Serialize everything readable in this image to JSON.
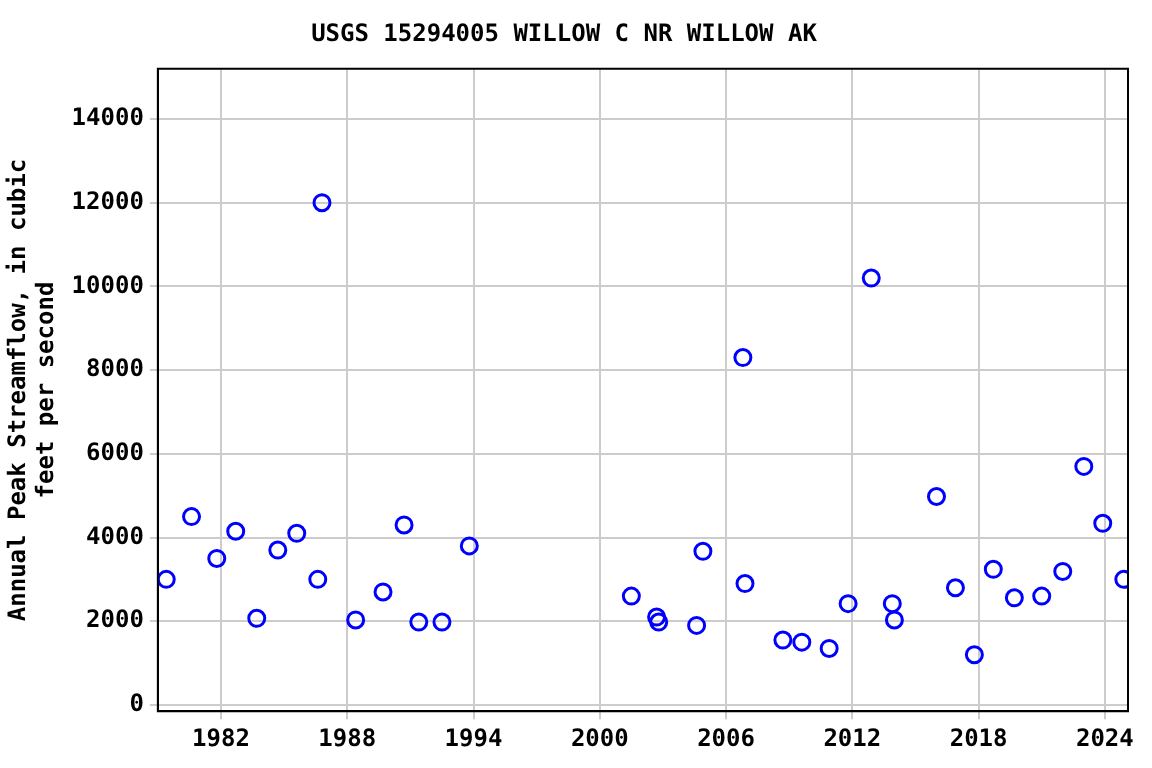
{
  "chart_data": {
    "type": "scatter",
    "title": "USGS 15294005 WILLOW C NR WILLOW AK",
    "ylabel": "Annual Peak Streamflow, in cubic feet per second",
    "x": [
      1979.4,
      1980.6,
      1981.8,
      1982.7,
      1983.7,
      1984.7,
      1985.6,
      1986.6,
      1986.8,
      1988.4,
      1989.7,
      1990.7,
      1991.4,
      1992.5,
      1993.8,
      2001.5,
      2002.7,
      2002.8,
      2004.6,
      2004.9,
      2006.8,
      2006.9,
      2008.7,
      2009.6,
      2010.9,
      2011.8,
      2012.9,
      2013.9,
      2014.0,
      2016.0,
      2016.9,
      2017.8,
      2018.7,
      2019.7,
      2021.0,
      2022.0,
      2023.0,
      2023.9,
      2024.9
    ],
    "series": [
      {
        "color": "#0000ff",
        "values": [
          3000,
          4500,
          3500,
          4150,
          2070,
          3700,
          4100,
          3000,
          12000,
          2030,
          2700,
          4300,
          1980,
          1980,
          3800,
          2600,
          2100,
          1980,
          1900,
          3670,
          8300,
          2900,
          1550,
          1500,
          1350,
          2420,
          10200,
          2420,
          2030,
          4980,
          2800,
          1200,
          3240,
          2560,
          2600,
          3190,
          5700,
          4340,
          3000
        ]
      }
    ],
    "xlim": [
      1979,
      2025.1
    ],
    "xticks": [
      1982,
      1988,
      1994,
      2000,
      2006,
      2012,
      2018,
      2024
    ],
    "ylim": [
      -150,
      15200
    ],
    "yticks": [
      0,
      2000,
      4000,
      6000,
      8000,
      10000,
      12000,
      14000
    ],
    "grid": true,
    "legend": false,
    "marker": "circle"
  }
}
